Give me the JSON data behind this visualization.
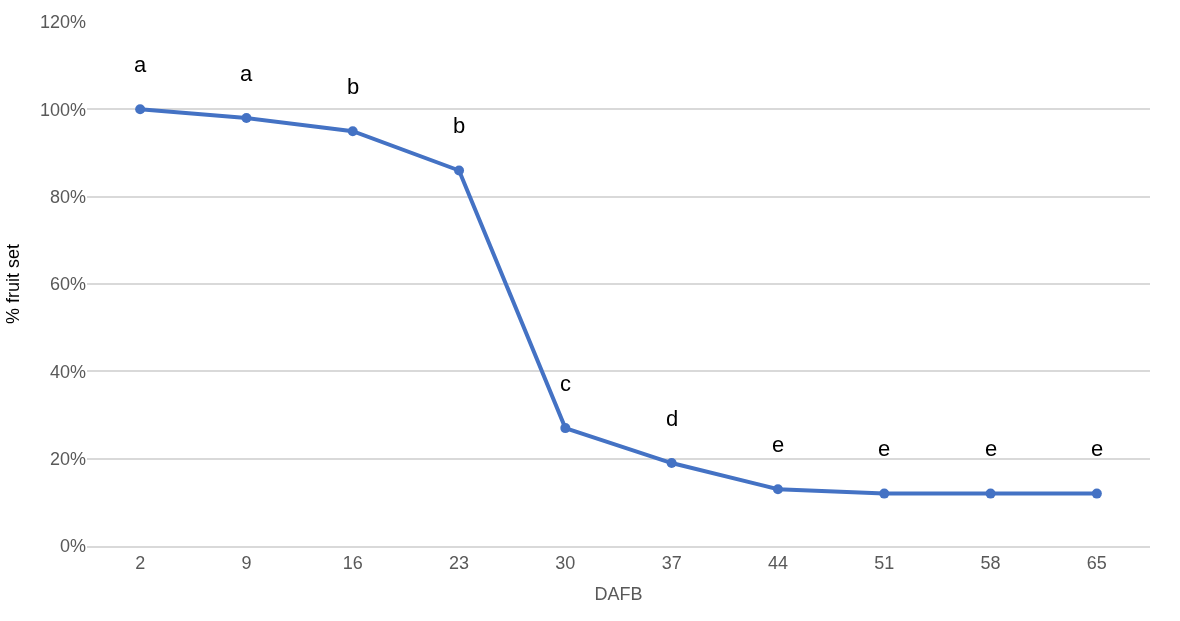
{
  "chart_data": {
    "type": "line",
    "xlabel": "DAFB",
    "ylabel": "% fruit set",
    "categories": [
      "2",
      "9",
      "16",
      "23",
      "30",
      "37",
      "44",
      "51",
      "58",
      "65"
    ],
    "series": [
      {
        "color": "#4472c4",
        "values": [
          100,
          98,
          95,
          86,
          27,
          19,
          13,
          12,
          12,
          12
        ]
      }
    ],
    "ylim": [
      0,
      120
    ],
    "yticks": [
      {
        "value": 0,
        "label": "0%"
      },
      {
        "value": 20,
        "label": "20%"
      },
      {
        "value": 40,
        "label": "40%"
      },
      {
        "value": 60,
        "label": "60%"
      },
      {
        "value": 80,
        "label": "80%"
      },
      {
        "value": 100,
        "label": "100%"
      },
      {
        "value": 120,
        "label": "120%"
      }
    ],
    "grid": "y",
    "marker": "circle",
    "line_style": "solid",
    "annotations": [
      {
        "text": "a",
        "x": "2",
        "y": 100
      },
      {
        "text": "a",
        "x": "9",
        "y": 98
      },
      {
        "text": "b",
        "x": "16",
        "y": 95
      },
      {
        "text": "b",
        "x": "23",
        "y": 86
      },
      {
        "text": "c",
        "x": "30",
        "y": 27
      },
      {
        "text": "d",
        "x": "37",
        "y": 19
      },
      {
        "text": "e",
        "x": "44",
        "y": 13
      },
      {
        "text": "e",
        "x": "51",
        "y": 12
      },
      {
        "text": "e",
        "x": "58",
        "y": 12
      },
      {
        "text": "e",
        "x": "65",
        "y": 12
      }
    ]
  }
}
